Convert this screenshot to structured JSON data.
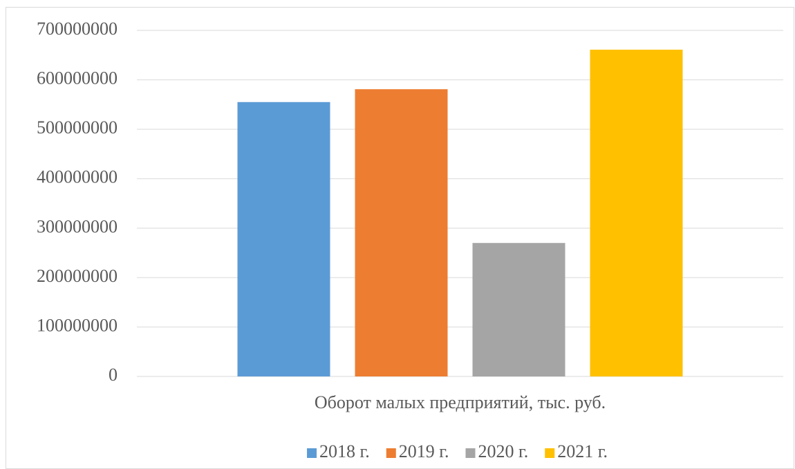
{
  "chart_data": {
    "type": "bar",
    "categories": [
      "Оборот малых предприятий, тыс. руб."
    ],
    "series": [
      {
        "name": "2018 г.",
        "color": "#5b9bd5",
        "values": [
          555000000
        ]
      },
      {
        "name": "2019 г.",
        "color": "#ed7d31",
        "values": [
          581000000
        ]
      },
      {
        "name": "2020 г.",
        "color": "#a5a5a5",
        "values": [
          270000000
        ]
      },
      {
        "name": "2021 г.",
        "color": "#ffc000",
        "values": [
          661000000
        ]
      }
    ],
    "ylim": [
      0,
      700000000
    ],
    "yticks": [
      0,
      100000000,
      200000000,
      300000000,
      400000000,
      500000000,
      600000000,
      700000000
    ],
    "grid": true,
    "legend": "bottom"
  }
}
